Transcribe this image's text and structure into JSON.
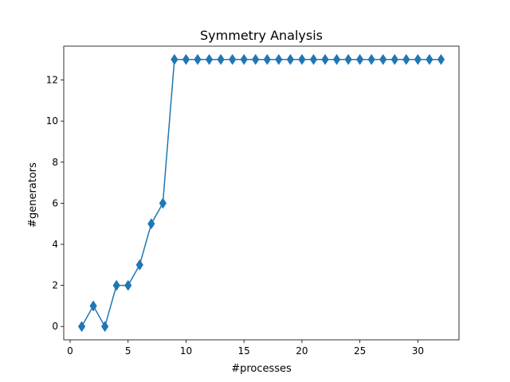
{
  "chart_data": {
    "type": "line",
    "title": "Symmetry Analysis",
    "xlabel": "#processes",
    "ylabel": "#generators",
    "xlim": [
      -0.55,
      33.55
    ],
    "ylim": [
      -0.65,
      13.65
    ],
    "x_ticks": [
      0,
      5,
      10,
      15,
      20,
      25,
      30
    ],
    "y_ticks": [
      0,
      2,
      4,
      6,
      8,
      10,
      12
    ],
    "grid": false,
    "marker": "thin_diamond",
    "color": "#1f77b4",
    "series": [
      {
        "x": [
          1,
          2,
          3,
          4,
          5,
          6,
          7,
          8,
          9,
          10,
          11,
          12,
          13,
          14,
          15,
          16,
          17,
          18,
          19,
          20,
          21,
          22,
          23,
          24,
          25,
          26,
          27,
          28,
          29,
          30,
          31,
          32
        ],
        "values": [
          0,
          1,
          0,
          2,
          2,
          3,
          5,
          6,
          13,
          13,
          13,
          13,
          13,
          13,
          13,
          13,
          13,
          13,
          13,
          13,
          13,
          13,
          13,
          13,
          13,
          13,
          13,
          13,
          13,
          13,
          13,
          13
        ]
      }
    ]
  }
}
